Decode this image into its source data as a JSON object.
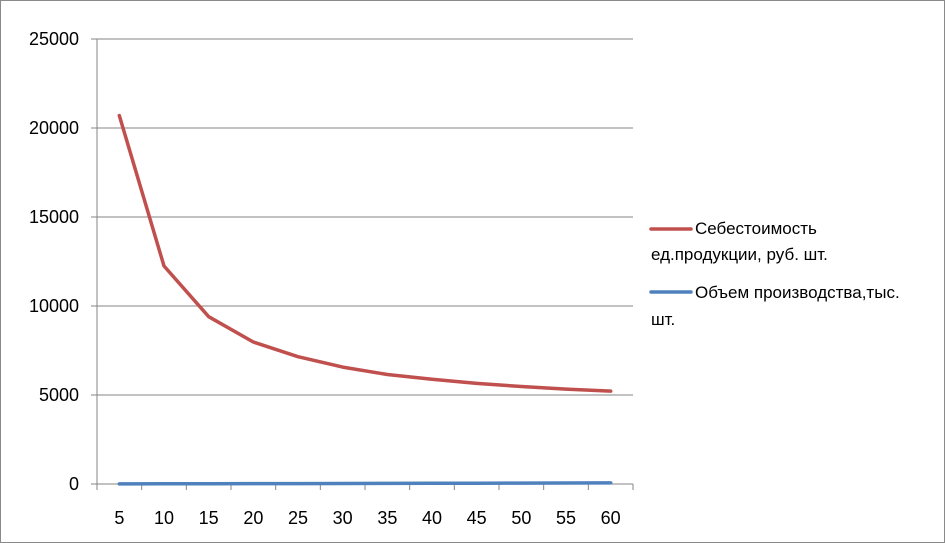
{
  "chart_data": {
    "type": "line",
    "x": [
      5,
      10,
      15,
      20,
      25,
      30,
      35,
      40,
      45,
      50,
      55,
      60
    ],
    "xticks": [
      "5",
      "10",
      "15",
      "20",
      "25",
      "30",
      "35",
      "40",
      "45",
      "50",
      "55",
      "60"
    ],
    "ylim": [
      0,
      25000
    ],
    "yticks": [
      "0",
      "5000",
      "10000",
      "15000",
      "20000",
      "25000"
    ],
    "grid": true,
    "legend_position": "right",
    "series": [
      {
        "name_lines": [
          "Себестоимость",
          "ед.продукции, руб. шт."
        ],
        "color": "#c0504d",
        "values": [
          20700,
          12250,
          9400,
          7980,
          7150,
          6570,
          6150,
          5880,
          5650,
          5480,
          5330,
          5220
        ]
      },
      {
        "name_lines": [
          "Объем производства,тыс.",
          "шт."
        ],
        "color": "#4f81bd",
        "values": [
          5,
          10,
          15,
          20,
          25,
          30,
          35,
          40,
          45,
          50,
          55,
          60
        ]
      }
    ]
  }
}
